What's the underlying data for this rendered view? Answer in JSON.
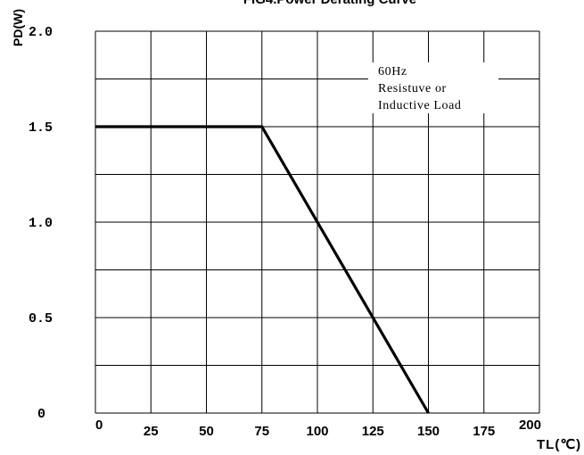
{
  "chart_data": {
    "type": "line",
    "title": "FIG4.Power Derating Curve",
    "xlabel": "TL(℃)",
    "ylabel": "PD(W)",
    "xlim": [
      0,
      200
    ],
    "ylim": [
      0,
      2.0
    ],
    "x_ticks": [
      "0",
      "25",
      "50",
      "75",
      "100",
      "125",
      "150",
      "175",
      "200"
    ],
    "y_ticks": [
      "0",
      "0.5",
      "1.0",
      "1.5",
      "2.0"
    ],
    "grid": true,
    "annotation": [
      "60Hz",
      "Resistuve or",
      "Inductive Load"
    ],
    "series": [
      {
        "x": [
          0,
          75,
          150
        ],
        "y": [
          1.5,
          1.5,
          0
        ]
      }
    ]
  }
}
